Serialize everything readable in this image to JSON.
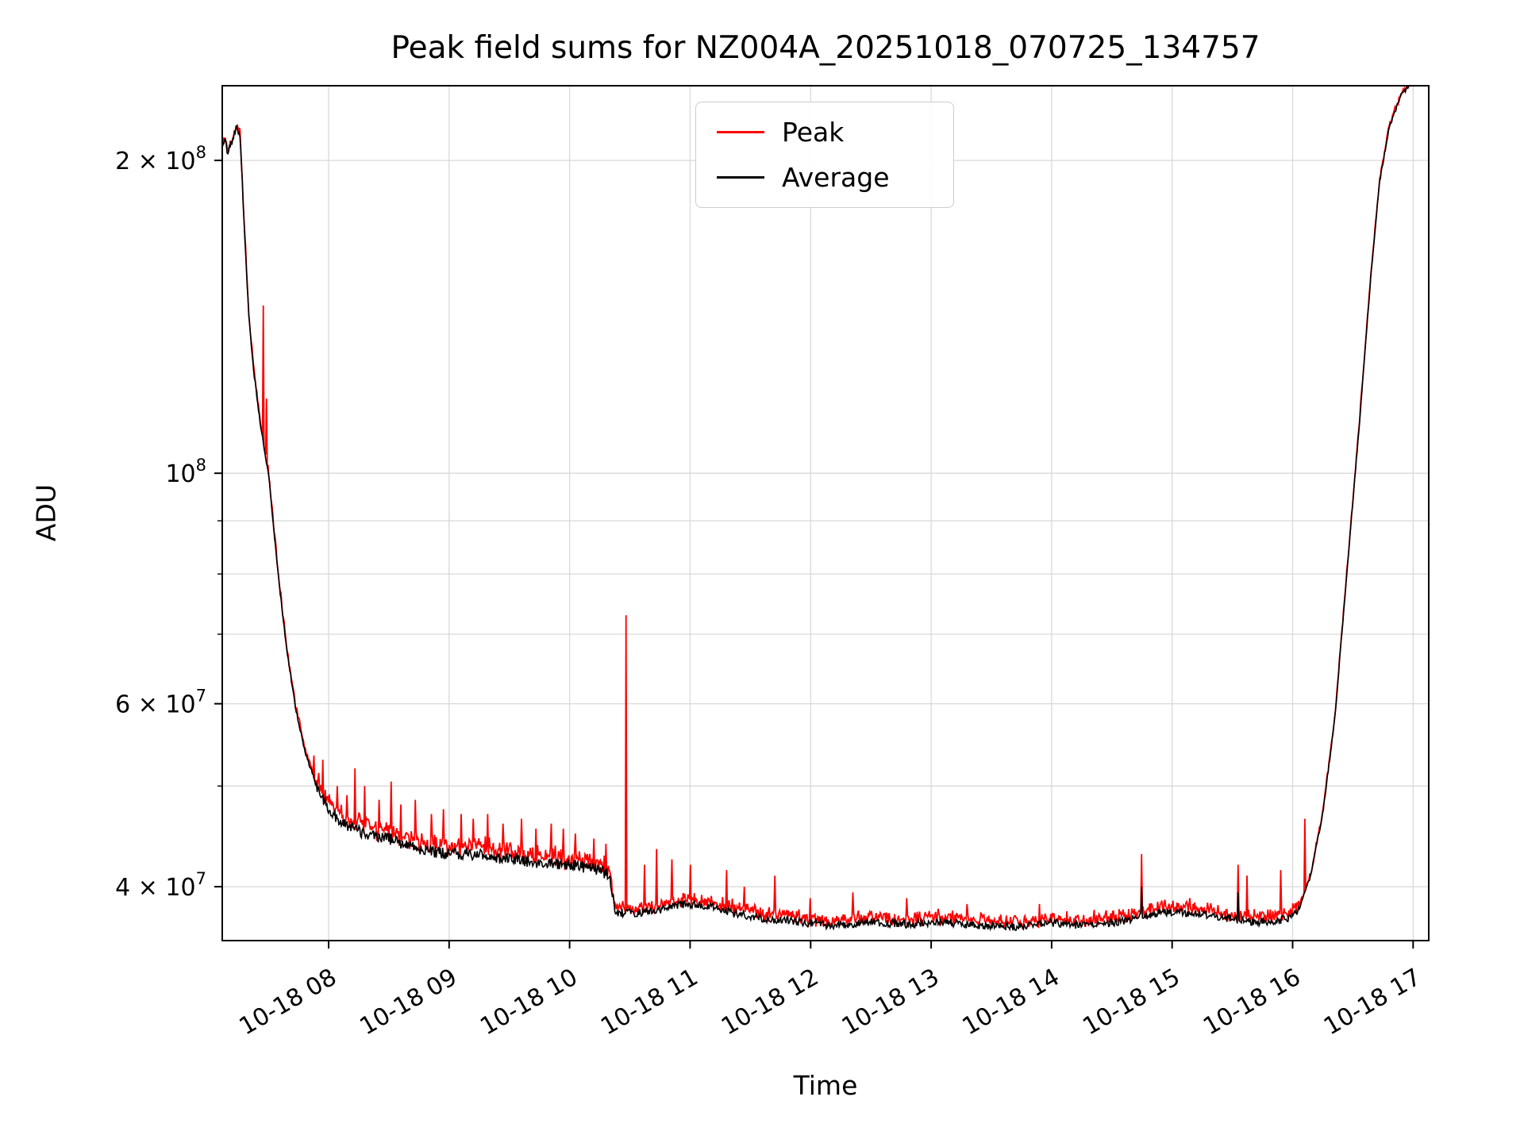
{
  "chart_data": {
    "type": "line",
    "title": "Peak field sums for NZ004A_20251018_070725_134757",
    "xlabel": "Time",
    "ylabel": "ADU",
    "yscale": "log",
    "grid": "both",
    "legend_position": "upper center",
    "ylim": [
      35500000,
      236000000
    ],
    "xlim_hours": [
      7.117,
      17.13
    ],
    "x_ticks": [
      {
        "hour": 8,
        "label": "10-18 08"
      },
      {
        "hour": 9,
        "label": "10-18 09"
      },
      {
        "hour": 10,
        "label": "10-18 10"
      },
      {
        "hour": 11,
        "label": "10-18 11"
      },
      {
        "hour": 12,
        "label": "10-18 12"
      },
      {
        "hour": 13,
        "label": "10-18 13"
      },
      {
        "hour": 14,
        "label": "10-18 14"
      },
      {
        "hour": 15,
        "label": "10-18 15"
      },
      {
        "hour": 16,
        "label": "10-18 16"
      },
      {
        "hour": 17,
        "label": "10-18 17"
      }
    ],
    "y_ticks": [
      {
        "value": 40000000,
        "label": "4 × 10^7"
      },
      {
        "value": 60000000,
        "label": "6 × 10^7"
      },
      {
        "value": 100000000,
        "label": "10^8"
      },
      {
        "value": 200000000,
        "label": "2 × 10^8"
      }
    ],
    "y_minor_gridlines": [
      50000000,
      70000000,
      80000000,
      90000000
    ],
    "series": [
      {
        "name": "Peak",
        "color": "#ff0000"
      },
      {
        "name": "Average",
        "color": "#000000"
      }
    ],
    "noise_seed": 42,
    "samples": 1500,
    "average_control_points": [
      [
        7.117,
        206000000
      ],
      [
        7.14,
        210000000
      ],
      [
        7.16,
        204000000
      ],
      [
        7.2,
        209000000
      ],
      [
        7.235,
        215000000
      ],
      [
        7.265,
        212000000
      ],
      [
        7.3,
        172000000
      ],
      [
        7.34,
        140000000
      ],
      [
        7.38,
        125000000
      ],
      [
        7.44,
        110000000
      ],
      [
        7.5,
        100000000
      ],
      [
        7.58,
        80000000
      ],
      [
        7.65,
        68000000
      ],
      [
        7.72,
        60000000
      ],
      [
        7.8,
        54000000
      ],
      [
        7.9,
        50000000
      ],
      [
        8.0,
        47500000
      ],
      [
        8.1,
        46200000
      ],
      [
        8.25,
        45200000
      ],
      [
        8.5,
        44500000
      ],
      [
        8.75,
        43500000
      ],
      [
        9.0,
        43000000
      ],
      [
        9.25,
        43000000
      ],
      [
        9.5,
        42500000
      ],
      [
        9.75,
        42200000
      ],
      [
        10.0,
        42000000
      ],
      [
        10.25,
        41500000
      ],
      [
        10.33,
        41000000
      ],
      [
        10.38,
        37800000
      ],
      [
        10.55,
        37700000
      ],
      [
        10.75,
        38000000
      ],
      [
        10.95,
        38500000
      ],
      [
        11.15,
        38300000
      ],
      [
        11.35,
        37800000
      ],
      [
        11.6,
        37300000
      ],
      [
        11.9,
        37000000
      ],
      [
        12.2,
        36700000
      ],
      [
        12.5,
        37000000
      ],
      [
        12.8,
        36800000
      ],
      [
        13.1,
        37000000
      ],
      [
        13.4,
        36700000
      ],
      [
        13.7,
        36600000
      ],
      [
        14.0,
        36900000
      ],
      [
        14.3,
        36700000
      ],
      [
        14.6,
        37100000
      ],
      [
        14.9,
        37800000
      ],
      [
        15.2,
        37700000
      ],
      [
        15.45,
        37300000
      ],
      [
        15.7,
        37000000
      ],
      [
        15.95,
        37200000
      ],
      [
        16.05,
        38000000
      ],
      [
        16.15,
        41000000
      ],
      [
        16.25,
        47000000
      ],
      [
        16.35,
        58000000
      ],
      [
        16.45,
        80000000
      ],
      [
        16.55,
        110000000
      ],
      [
        16.65,
        155000000
      ],
      [
        16.72,
        190000000
      ],
      [
        16.8,
        215000000
      ],
      [
        16.9,
        231000000
      ],
      [
        17.0,
        238000000
      ],
      [
        17.13,
        246000000
      ]
    ],
    "peak_spikes": [
      [
        7.455,
        145000000
      ],
      [
        7.485,
        118000000
      ],
      [
        7.78,
        56000000
      ],
      [
        7.88,
        53500000
      ],
      [
        7.95,
        53000000
      ],
      [
        8.07,
        50000000
      ],
      [
        8.15,
        49000000
      ],
      [
        8.22,
        52000000
      ],
      [
        8.3,
        50000000
      ],
      [
        8.42,
        48500000
      ],
      [
        8.52,
        50500000
      ],
      [
        8.6,
        48000000
      ],
      [
        8.72,
        48500000
      ],
      [
        8.85,
        47000000
      ],
      [
        8.95,
        47500000
      ],
      [
        9.1,
        47000000
      ],
      [
        9.2,
        46500000
      ],
      [
        9.32,
        47000000
      ],
      [
        9.45,
        46000000
      ],
      [
        9.6,
        46500000
      ],
      [
        9.72,
        45500000
      ],
      [
        9.85,
        46000000
      ],
      [
        9.95,
        45500000
      ],
      [
        10.05,
        45000000
      ],
      [
        10.2,
        44500000
      ],
      [
        10.3,
        44000000
      ],
      [
        10.47,
        73000000
      ],
      [
        10.62,
        42000000
      ],
      [
        10.72,
        43500000
      ],
      [
        10.85,
        42500000
      ],
      [
        11.0,
        42000000
      ],
      [
        11.3,
        41500000
      ],
      [
        11.45,
        40000000
      ],
      [
        11.7,
        41000000
      ],
      [
        12.0,
        39000000
      ],
      [
        12.35,
        39500000
      ],
      [
        12.8,
        39000000
      ],
      [
        13.3,
        38500000
      ],
      [
        13.9,
        38500000
      ],
      [
        14.35,
        38000000
      ],
      [
        14.75,
        43000000
      ],
      [
        15.15,
        39000000
      ],
      [
        15.55,
        42000000
      ],
      [
        15.62,
        41000000
      ],
      [
        15.9,
        41500000
      ],
      [
        16.1,
        46500000
      ]
    ],
    "average_spikes": [
      [
        14.75,
        40000000
      ],
      [
        15.55,
        39500000
      ]
    ],
    "noise_regions": [
      {
        "from": 7.117,
        "to": 7.3,
        "avg": 0.008,
        "peak": 0.008
      },
      {
        "from": 7.3,
        "to": 7.9,
        "avg": 0.005,
        "peak": 0.012
      },
      {
        "from": 7.9,
        "to": 10.33,
        "avg": 0.013,
        "peak": 0.032
      },
      {
        "from": 10.33,
        "to": 16.05,
        "avg": 0.009,
        "peak": 0.022
      },
      {
        "from": 16.05,
        "to": 17.14,
        "avg": 0.004,
        "peak": 0.008
      }
    ],
    "colors": {
      "grid": "#d9d9d9",
      "spine": "#000000",
      "background": "#ffffff"
    }
  }
}
